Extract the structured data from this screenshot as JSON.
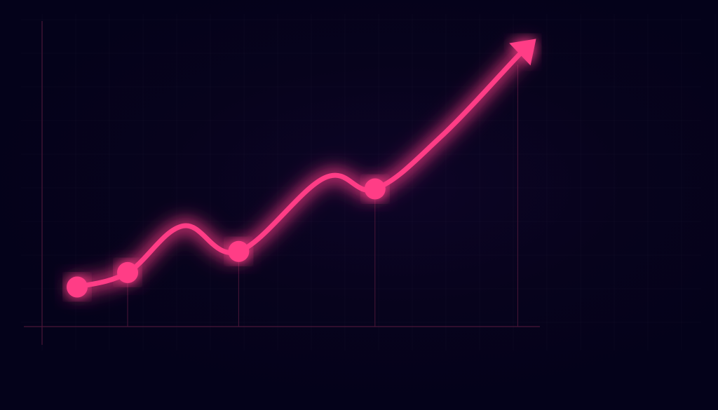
{
  "chart_data": {
    "type": "line",
    "title": "",
    "xlabel": "",
    "ylabel": "",
    "grid": true,
    "trend_arrow": true,
    "line_color": "#ff3d86",
    "axis_color": "#4a1638",
    "series": [
      {
        "points": [
          {
            "x": 0.0,
            "y": 0.78,
            "marker": true
          },
          {
            "x": 1.0,
            "y": 1.08,
            "marker": true
          },
          {
            "x": 2.1,
            "y": 2.05,
            "marker": false
          },
          {
            "x": 3.2,
            "y": 1.52,
            "marker": true
          },
          {
            "x": 4.9,
            "y": 3.05,
            "marker": false
          },
          {
            "x": 5.9,
            "y": 2.82,
            "marker": true
          },
          {
            "x": 7.2,
            "y": 3.9,
            "marker": false
          },
          {
            "x": 8.7,
            "y": 5.55,
            "marker": false
          },
          {
            "x": 8.85,
            "y": 5.7,
            "marker": false
          }
        ]
      }
    ]
  }
}
